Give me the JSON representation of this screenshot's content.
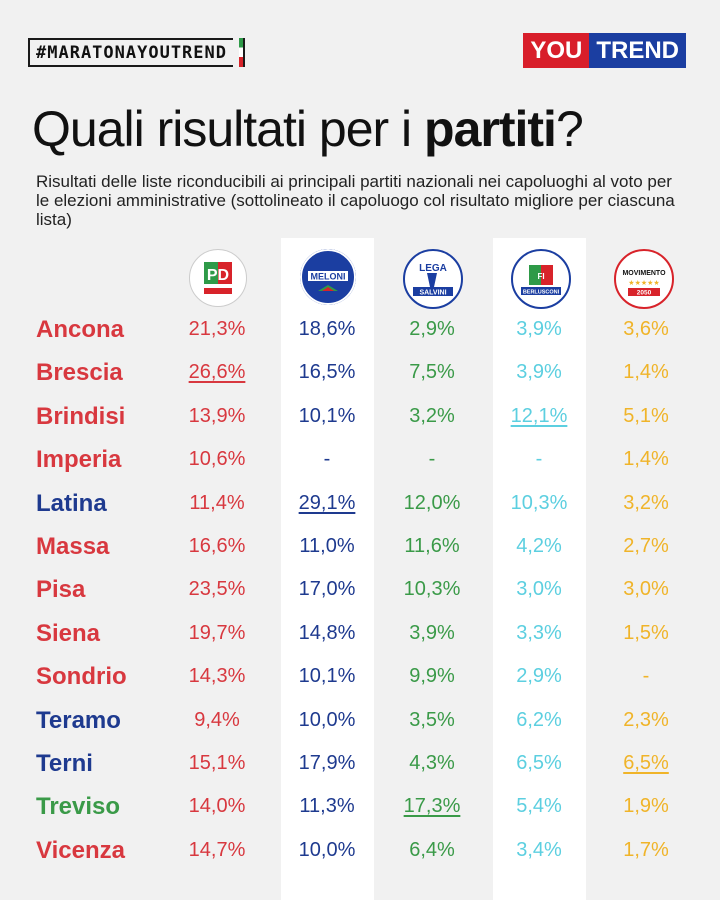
{
  "header": {
    "hashtag": "#MARATONAYOUTREND",
    "logo_you": "YOU",
    "logo_trend": "TREND",
    "title_light": "Quali risultati per i ",
    "title_bold": "partiti",
    "title_end": "?",
    "subtitle": "Risultati delle liste riconducibili ai principali partiti nazionali nei capoluoghi al voto per le elezioni amministrative (sottolineato il capoluogo col risultato migliore per ciascuna lista)"
  },
  "party_logos": [
    {
      "icon": "pd-logo-icon",
      "text": "PD",
      "color": "#d8232a"
    },
    {
      "icon": "fdi-logo-icon",
      "text": "MELONI",
      "color": "#1b3ea1"
    },
    {
      "icon": "lega-logo-icon",
      "text": "SALVINI",
      "color": "#1b3ea1"
    },
    {
      "icon": "fi-logo-icon",
      "text": "BERLUSCONI",
      "color": "#1b3ea1"
    },
    {
      "icon": "m5s-logo-icon",
      "text": "MOVIMENTO",
      "color": "#d8232a"
    }
  ],
  "colors": {
    "pd": "#d8383f",
    "fdi": "#1e3a8f",
    "lega": "#3a9a48",
    "fi": "#5ccfe0",
    "m5s": "#f0b429"
  },
  "chart_data": {
    "type": "table",
    "columns": [
      "PD",
      "FdI",
      "Lega",
      "FI",
      "M5S"
    ],
    "rows": [
      {
        "city": "Ancona",
        "color": "#d8383f",
        "values": [
          "21,3%",
          "18,6%",
          "2,9%",
          "3,9%",
          "3,6%"
        ],
        "best": []
      },
      {
        "city": "Brescia",
        "color": "#d8383f",
        "values": [
          "26,6%",
          "16,5%",
          "7,5%",
          "3,9%",
          "1,4%"
        ],
        "best": [
          0
        ]
      },
      {
        "city": "Brindisi",
        "color": "#d8383f",
        "values": [
          "13,9%",
          "10,1%",
          "3,2%",
          "12,1%",
          "5,1%"
        ],
        "best": [
          3
        ]
      },
      {
        "city": "Imperia",
        "color": "#d8383f",
        "values": [
          "10,6%",
          "-",
          "-",
          "-",
          "1,4%"
        ],
        "best": []
      },
      {
        "city": "Latina",
        "color": "#1e3a8f",
        "values": [
          "11,4%",
          "29,1%",
          "12,0%",
          "10,3%",
          "3,2%"
        ],
        "best": [
          1
        ]
      },
      {
        "city": "Massa",
        "color": "#d8383f",
        "values": [
          "16,6%",
          "11,0%",
          "11,6%",
          "4,2%",
          "2,7%"
        ],
        "best": []
      },
      {
        "city": "Pisa",
        "color": "#d8383f",
        "values": [
          "23,5%",
          "17,0%",
          "10,3%",
          "3,0%",
          "3,0%"
        ],
        "best": []
      },
      {
        "city": "Siena",
        "color": "#d8383f",
        "values": [
          "19,7%",
          "14,8%",
          "3,9%",
          "3,3%",
          "1,5%"
        ],
        "best": []
      },
      {
        "city": "Sondrio",
        "color": "#d8383f",
        "values": [
          "14,3%",
          "10,1%",
          "9,9%",
          "2,9%",
          "-"
        ],
        "best": []
      },
      {
        "city": "Teramo",
        "color": "#1e3a8f",
        "values": [
          "9,4%",
          "10,0%",
          "3,5%",
          "6,2%",
          "2,3%"
        ],
        "best": []
      },
      {
        "city": "Terni",
        "color": "#1e3a8f",
        "values": [
          "15,1%",
          "17,9%",
          "4,3%",
          "6,5%",
          "6,5%"
        ],
        "best": [
          4
        ]
      },
      {
        "city": "Treviso",
        "color": "#3a9a48",
        "values": [
          "14,0%",
          "11,3%",
          "17,3%",
          "5,4%",
          "1,9%"
        ],
        "best": [
          2
        ]
      },
      {
        "city": "Vicenza",
        "color": "#d8383f",
        "values": [
          "14,7%",
          "10,0%",
          "6,4%",
          "3,4%",
          "1,7%"
        ],
        "best": []
      }
    ]
  }
}
